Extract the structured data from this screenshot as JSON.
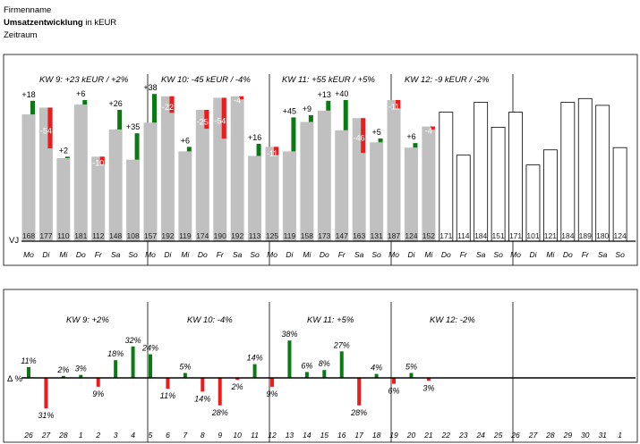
{
  "header": {
    "company": "Firmenname",
    "title_bold": "Umsatzentwicklung",
    "title_rest": " in kEUR",
    "period": "Zeitraum"
  },
  "colors": {
    "bar": "#c0c0c0",
    "pos": "#0a7a12",
    "neg": "#f01a1a",
    "future": "#ffffff"
  },
  "chart_data": [
    {
      "type": "bar",
      "title": "Umsatzentwicklung in kEUR",
      "row_label": "VJ",
      "weeks": [
        {
          "label": "KW 9: +23 kEUR / +2%"
        },
        {
          "label": "KW 10: -45 kEUR / -4%"
        },
        {
          "label": "KW 11: +55 kEUR / +5%"
        },
        {
          "label": "KW 12: -9 kEUR / -2%"
        }
      ],
      "categories": [
        "Mo",
        "Di",
        "Mi",
        "Do",
        "Fr",
        "Sa",
        "So",
        "Mo",
        "Di",
        "Mi",
        "Do",
        "Fr",
        "Sa",
        "So",
        "Mo",
        "Di",
        "Mi",
        "Do",
        "Fr",
        "Sa",
        "So",
        "Mo",
        "Di",
        "Mi",
        "Do",
        "Fr",
        "Sa",
        "So",
        "Mo",
        "Di",
        "Mi",
        "Do",
        "Fr",
        "Sa",
        "So"
      ],
      "prior_year": [
        168,
        177,
        110,
        181,
        112,
        148,
        108,
        157,
        192,
        119,
        174,
        190,
        192,
        113,
        125,
        119,
        158,
        173,
        147,
        163,
        131,
        187,
        124,
        152,
        171,
        114,
        184,
        151,
        171,
        101,
        121,
        184,
        189,
        180,
        124
      ],
      "delta": [
        18,
        -54,
        2,
        6,
        -10,
        26,
        35,
        38,
        -22,
        6,
        -25,
        -54,
        -4,
        16,
        -11,
        45,
        9,
        13,
        40,
        -46,
        5,
        -11,
        6,
        -4,
        null,
        null,
        null,
        null,
        null,
        null,
        null,
        null,
        null,
        null,
        null
      ],
      "delta_labels": [
        "+18",
        "-54",
        "+2",
        "+6",
        "-10",
        "+26",
        "+35",
        "+38",
        "-22",
        "+6",
        "-25",
        "-54",
        "-4",
        "+16",
        "-11",
        "+45",
        "+9",
        "+13",
        "+40",
        "-46",
        "+5",
        "-11",
        "+6",
        "-4",
        "",
        "",
        "",
        "",
        "",
        "",
        "",
        "",
        "",
        "",
        ""
      ],
      "actual_days": 24
    },
    {
      "type": "bar",
      "title": "Δ %",
      "ylabel": "Δ %",
      "weeks": [
        {
          "label": "KW 9: +2%"
        },
        {
          "label": "KW 10: -4%"
        },
        {
          "label": "KW 11: +5%"
        },
        {
          "label": "KW 12: -2%"
        }
      ],
      "categories": [
        "26",
        "27",
        "28",
        "1",
        "2",
        "3",
        "4",
        "5",
        "6",
        "7",
        "8",
        "9",
        "10",
        "11",
        "12",
        "13",
        "14",
        "15",
        "16",
        "17",
        "18",
        "19",
        "20",
        "21",
        "22",
        "23",
        "24",
        "25",
        "26",
        "27",
        "28",
        "29",
        "30",
        "31",
        "1"
      ],
      "values": [
        11,
        -31,
        2,
        3,
        -9,
        18,
        32,
        24,
        -11,
        5,
        -14,
        -28,
        -2,
        14,
        -9,
        38,
        6,
        8,
        27,
        -28,
        4,
        -6,
        5,
        -3,
        null,
        null,
        null,
        null,
        null,
        null,
        null,
        null,
        null,
        null,
        null
      ],
      "value_labels": [
        "11%",
        "31%",
        "2%",
        "3%",
        "9%",
        "18%",
        "32%",
        "24%",
        "11%",
        "5%",
        "14%",
        "28%",
        "2%",
        "14%",
        "9%",
        "38%",
        "6%",
        "8%",
        "27%",
        "28%",
        "4%",
        "6%",
        "5%",
        "3%",
        "",
        "",
        "",
        "",
        "",
        "",
        "",
        "",
        "",
        "",
        ""
      ]
    }
  ]
}
